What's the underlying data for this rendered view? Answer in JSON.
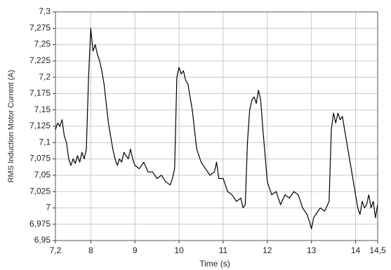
{
  "chart_data": {
    "type": "line",
    "x_label": "Time (s)",
    "y_label": "RMS Induction Motor Current (A)",
    "color": "#000000",
    "grid": true,
    "xlim": [
      7.2,
      14.5
    ],
    "ylim": [
      6.95,
      7.3
    ],
    "xticks": [
      {
        "value": 7.2,
        "label": "7,2"
      },
      8,
      9,
      10,
      11,
      12,
      13,
      14,
      {
        "value": 14.5,
        "label": "14,5"
      }
    ],
    "yticks": [
      {
        "value": 6.95,
        "label": "6,95"
      },
      {
        "value": 6.975,
        "label": "6,975"
      },
      7,
      {
        "value": 7.025,
        "label": "7,025"
      },
      {
        "value": 7.05,
        "label": "7,05"
      },
      {
        "value": 7.075,
        "label": "7,075"
      },
      {
        "value": 7.1,
        "label": "7,1"
      },
      {
        "value": 7.125,
        "label": "7,125"
      },
      {
        "value": 7.15,
        "label": "7,15"
      },
      {
        "value": 7.175,
        "label": "7,175"
      },
      {
        "value": 7.2,
        "label": "7,2"
      },
      {
        "value": 7.225,
        "label": "7,225"
      },
      {
        "value": 7.25,
        "label": "7,25"
      },
      {
        "value": 7.275,
        "label": "7,275"
      },
      {
        "value": 7.3,
        "label": "7,3"
      }
    ],
    "x": [
      7.2,
      7.25,
      7.3,
      7.35,
      7.4,
      7.45,
      7.5,
      7.55,
      7.6,
      7.65,
      7.7,
      7.75,
      7.8,
      7.85,
      7.9,
      7.95,
      8.0,
      8.05,
      8.1,
      8.15,
      8.2,
      8.25,
      8.3,
      8.35,
      8.4,
      8.45,
      8.5,
      8.55,
      8.6,
      8.65,
      8.7,
      8.75,
      8.8,
      8.85,
      8.9,
      8.95,
      9.0,
      9.1,
      9.2,
      9.3,
      9.4,
      9.5,
      9.6,
      9.7,
      9.8,
      9.85,
      9.9,
      9.95,
      10.0,
      10.05,
      10.1,
      10.15,
      10.2,
      10.25,
      10.3,
      10.35,
      10.4,
      10.5,
      10.6,
      10.7,
      10.8,
      10.85,
      10.9,
      11.0,
      11.1,
      11.2,
      11.3,
      11.4,
      11.45,
      11.5,
      11.55,
      11.6,
      11.65,
      11.7,
      11.75,
      11.8,
      11.85,
      11.9,
      11.95,
      12.0,
      12.1,
      12.2,
      12.3,
      12.4,
      12.5,
      12.6,
      12.7,
      12.8,
      12.9,
      12.95,
      13.0,
      13.05,
      13.1,
      13.2,
      13.3,
      13.4,
      13.45,
      13.5,
      13.55,
      13.6,
      13.65,
      13.7,
      13.75,
      13.8,
      13.85,
      13.9,
      13.95,
      14.0,
      14.05,
      14.1,
      14.15,
      14.2,
      14.25,
      14.3,
      14.35,
      14.4,
      14.45,
      14.5
    ],
    "values": [
      7.12,
      7.13,
      7.125,
      7.135,
      7.11,
      7.1,
      7.075,
      7.065,
      7.075,
      7.068,
      7.08,
      7.07,
      7.085,
      7.075,
      7.09,
      7.2,
      7.275,
      7.24,
      7.25,
      7.235,
      7.225,
      7.21,
      7.19,
      7.16,
      7.13,
      7.11,
      7.09,
      7.075,
      7.065,
      7.075,
      7.07,
      7.085,
      7.08,
      7.075,
      7.09,
      7.075,
      7.065,
      7.06,
      7.07,
      7.055,
      7.055,
      7.045,
      7.05,
      7.04,
      7.035,
      7.045,
      7.06,
      7.2,
      7.215,
      7.205,
      7.21,
      7.195,
      7.19,
      7.17,
      7.15,
      7.12,
      7.09,
      7.07,
      7.06,
      7.05,
      7.055,
      7.07,
      7.045,
      7.045,
      7.025,
      7.02,
      7.01,
      7.015,
      7.0,
      7.005,
      7.1,
      7.15,
      7.165,
      7.17,
      7.16,
      7.18,
      7.165,
      7.12,
      7.08,
      7.04,
      7.02,
      7.025,
      7.005,
      7.02,
      7.015,
      7.025,
      7.02,
      7.0,
      6.99,
      6.98,
      6.968,
      6.985,
      6.99,
      7.0,
      6.995,
      7.01,
      7.12,
      7.145,
      7.13,
      7.145,
      7.135,
      7.14,
      7.12,
      7.1,
      7.08,
      7.06,
      7.04,
      7.02,
      7.0,
      6.99,
      7.01,
      7.0,
      7.005,
      7.02,
      7.0,
      7.01,
      6.985,
      7.005
    ]
  }
}
